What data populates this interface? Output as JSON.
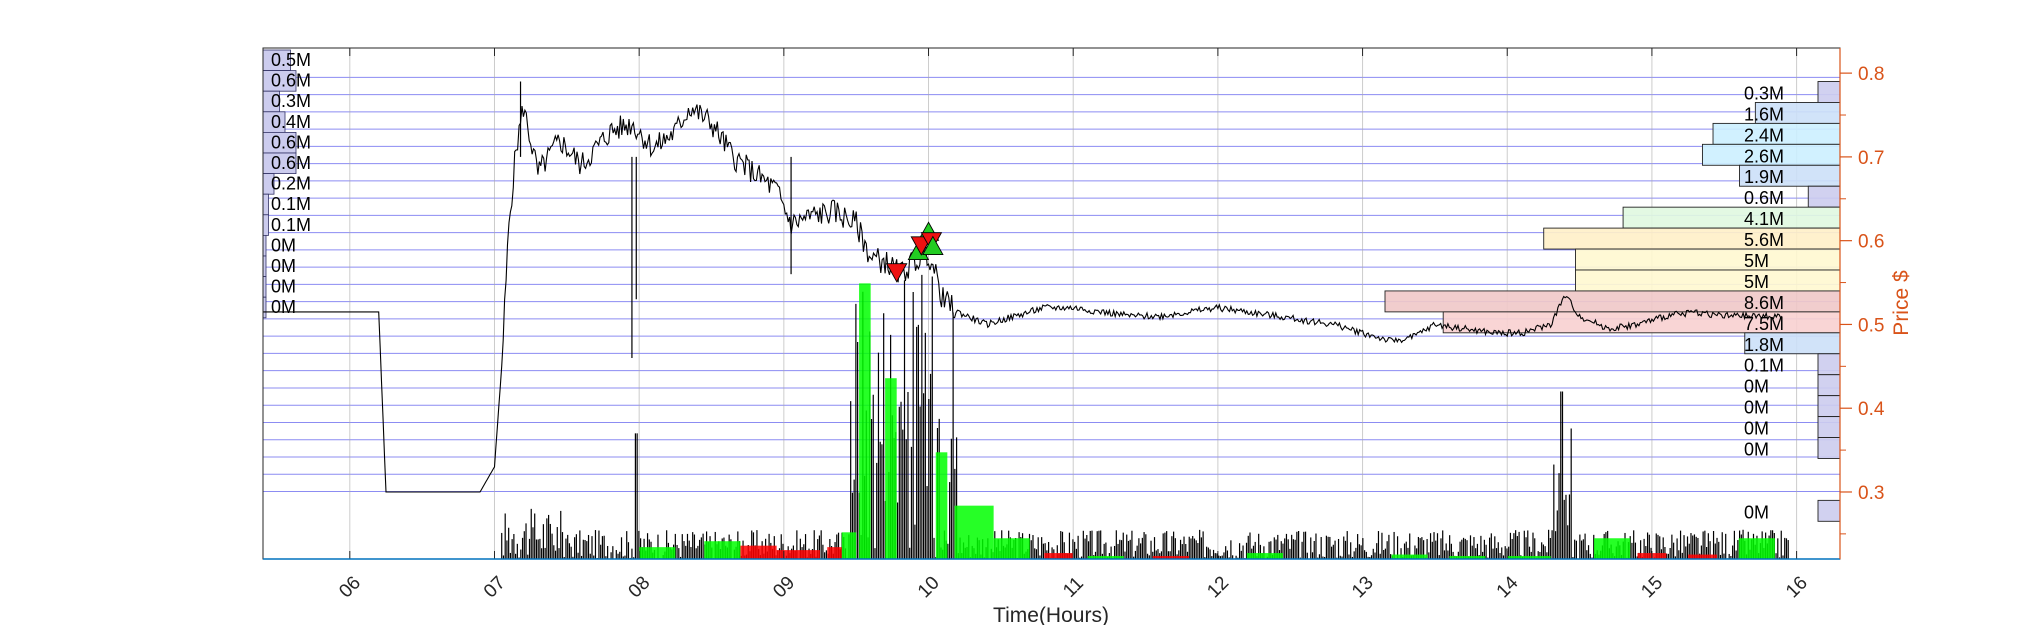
{
  "chart_data": {
    "type": "line",
    "title": "",
    "xlabel": "Time(Hours)",
    "ylabel": "Price $",
    "x_tick_labels": [
      "06",
      "07",
      "08",
      "09",
      "10",
      "11",
      "12",
      "13",
      "14",
      "15",
      "16"
    ],
    "xlim": [
      5.4,
      16.3
    ],
    "ylim": [
      0.22,
      0.83
    ],
    "y_ticks": [
      0.3,
      0.4,
      0.5,
      0.6,
      0.7,
      0.8
    ],
    "y_tick_labels": [
      "0.3",
      "0.4",
      "0.5",
      "0.6",
      "0.7",
      "0.8"
    ],
    "grid": true,
    "colors": {
      "price": "#000000",
      "buy_volume": "#00FF00",
      "sell_volume": "#FF0000",
      "price_axis": "#D95319",
      "grid": "#0000FF"
    },
    "price_series": {
      "name": "Price",
      "x": [
        5.4,
        6.2,
        6.25,
        6.9,
        7.0,
        7.05,
        7.1,
        7.15,
        7.2,
        7.3,
        7.45,
        7.6,
        7.8,
        7.95,
        8.1,
        8.25,
        8.35,
        8.5,
        8.65,
        8.8,
        8.95,
        9.05,
        9.2,
        9.35,
        9.5,
        9.6,
        9.7,
        9.8,
        9.9,
        10.0,
        10.1,
        10.2,
        10.4,
        10.6,
        10.8,
        11.0,
        11.2,
        11.4,
        11.6,
        11.8,
        12.0,
        12.2,
        12.4,
        12.6,
        12.8,
        13.0,
        13.2,
        13.35,
        13.5,
        13.7,
        13.9,
        14.1,
        14.3,
        14.4,
        14.5,
        14.7,
        14.9,
        15.1,
        15.3,
        15.5,
        15.7,
        15.9
      ],
      "y": [
        0.515,
        0.515,
        0.3,
        0.3,
        0.33,
        0.45,
        0.62,
        0.71,
        0.76,
        0.68,
        0.72,
        0.69,
        0.73,
        0.74,
        0.71,
        0.73,
        0.76,
        0.74,
        0.7,
        0.68,
        0.66,
        0.62,
        0.63,
        0.635,
        0.62,
        0.58,
        0.575,
        0.56,
        0.575,
        0.585,
        0.53,
        0.515,
        0.5,
        0.51,
        0.52,
        0.52,
        0.515,
        0.51,
        0.51,
        0.515,
        0.52,
        0.515,
        0.51,
        0.505,
        0.5,
        0.49,
        0.48,
        0.485,
        0.5,
        0.495,
        0.49,
        0.49,
        0.5,
        0.535,
        0.51,
        0.495,
        0.5,
        0.51,
        0.515,
        0.51,
        0.51,
        0.51
      ]
    },
    "volume_bars": {
      "name": "Volume",
      "buy": [
        {
          "x0": 9.52,
          "x1": 9.6,
          "v": 0.93
        },
        {
          "x0": 9.7,
          "x1": 9.78,
          "v": 0.61
        },
        {
          "x0": 10.05,
          "x1": 10.13,
          "v": 0.36
        },
        {
          "x0": 10.18,
          "x1": 10.45,
          "v": 0.18
        },
        {
          "x0": 10.45,
          "x1": 10.7,
          "v": 0.07
        },
        {
          "x0": 9.4,
          "x1": 9.5,
          "v": 0.09
        },
        {
          "x0": 8.0,
          "x1": 8.25,
          "v": 0.04
        },
        {
          "x0": 8.45,
          "x1": 8.7,
          "v": 0.06
        },
        {
          "x0": 14.6,
          "x1": 14.85,
          "v": 0.07
        },
        {
          "x0": 15.6,
          "x1": 15.85,
          "v": 0.07
        },
        {
          "x0": 11.1,
          "x1": 11.35,
          "v": 0.01
        },
        {
          "x0": 12.2,
          "x1": 12.45,
          "v": 0.02
        },
        {
          "x0": 13.2,
          "x1": 13.45,
          "v": 0.015
        },
        {
          "x0": 13.6,
          "x1": 13.85,
          "v": 0.01
        },
        {
          "x0": 14.0,
          "x1": 14.3,
          "v": 0.01
        }
      ],
      "sell": [
        {
          "x0": 8.7,
          "x1": 8.95,
          "v": 0.045
        },
        {
          "x0": 8.95,
          "x1": 9.25,
          "v": 0.03
        },
        {
          "x0": 9.3,
          "x1": 9.4,
          "v": 0.04
        },
        {
          "x0": 10.8,
          "x1": 11.0,
          "v": 0.02
        },
        {
          "x0": 11.55,
          "x1": 11.8,
          "v": 0.01
        },
        {
          "x0": 14.9,
          "x1": 15.1,
          "v": 0.02
        },
        {
          "x0": 15.25,
          "x1": 15.45,
          "v": 0.015
        }
      ]
    },
    "trade_markers": [
      {
        "type": "sell",
        "x": 9.78,
        "y": 0.563
      },
      {
        "type": "buy",
        "x": 9.93,
        "y": 0.587
      },
      {
        "type": "buy",
        "x": 10.0,
        "y": 0.61
      },
      {
        "type": "sell",
        "x": 9.95,
        "y": 0.595
      },
      {
        "type": "sell",
        "x": 10.02,
        "y": 0.6
      },
      {
        "type": "buy",
        "x": 10.03,
        "y": 0.593
      }
    ],
    "volume_profile_left": {
      "labels": [
        "0.5M",
        "0.6M",
        "0.3M",
        "0.4M",
        "0.6M",
        "0.6M",
        "0.2M",
        "0.1M",
        "0.1M",
        "0M",
        "0M",
        "0M",
        "0M"
      ],
      "values": [
        0.5,
        0.6,
        0.3,
        0.4,
        0.6,
        0.6,
        0.2,
        0.1,
        0.1,
        0.02,
        0.01,
        0.01,
        0.01
      ]
    },
    "volume_profile_right": {
      "labels": [
        "0.3M",
        "1.6M",
        "2.4M",
        "2.6M",
        "1.9M",
        "0.6M",
        "4.1M",
        "5.6M",
        "5M",
        "5M",
        "8.6M",
        "7.5M",
        "1.8M",
        "0.1M",
        "0M",
        "0M",
        "0M",
        "0M",
        "0M"
      ],
      "values": [
        0.3,
        1.6,
        2.4,
        2.6,
        1.9,
        0.6,
        4.1,
        5.6,
        5.0,
        5.0,
        8.6,
        7.5,
        1.8,
        0.1,
        0.05,
        0.05,
        0.05,
        0.05,
        0.05
      ],
      "price_bins": [
        [
          0.765,
          0.79
        ],
        [
          0.74,
          0.765
        ],
        [
          0.715,
          0.74
        ],
        [
          0.69,
          0.715
        ],
        [
          0.665,
          0.69
        ],
        [
          0.64,
          0.665
        ],
        [
          0.615,
          0.64
        ],
        [
          0.59,
          0.615
        ],
        [
          0.565,
          0.59
        ],
        [
          0.54,
          0.565
        ],
        [
          0.515,
          0.54
        ],
        [
          0.49,
          0.515
        ],
        [
          0.465,
          0.49
        ],
        [
          0.44,
          0.465
        ],
        [
          0.415,
          0.44
        ],
        [
          0.39,
          0.415
        ],
        [
          0.365,
          0.39
        ],
        [
          0.34,
          0.365
        ],
        [
          0.265,
          0.29
        ]
      ],
      "colors": [
        "#CCCCEE",
        "#CCE0F8",
        "#CCF0FF",
        "#CCF0FF",
        "#CCE0F8",
        "#CCCCEE",
        "#E0F8E0",
        "#FFF0C8",
        "#FFF8D0",
        "#FFF8D0",
        "#F0C8C8",
        "#F8D0D0",
        "#CCE0F8",
        "#CCCCEE",
        "#CCCCEE",
        "#CCCCEE",
        "#CCCCEE",
        "#CCCCEE",
        "#CCCCEE"
      ]
    }
  }
}
